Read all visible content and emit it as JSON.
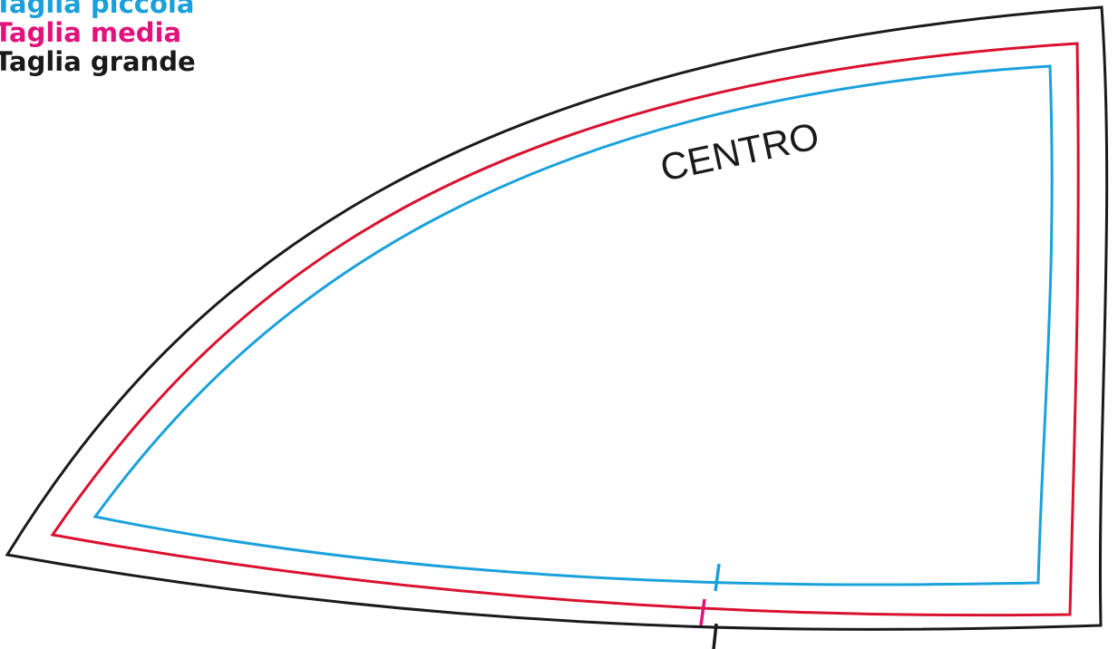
{
  "legend": {
    "small": {
      "label": "Taglia piccola",
      "color": "#1aa1db"
    },
    "medium": {
      "label": "Taglia media",
      "color": "#e2127c"
    },
    "large": {
      "label": "Taglia grande",
      "color": "#1a1a1a"
    }
  },
  "pattern": {
    "label": "CENTRO",
    "outline_colors": {
      "large": "#1a1a1a",
      "medium": "#d9112f",
      "small": "#1aa1db"
    }
  }
}
